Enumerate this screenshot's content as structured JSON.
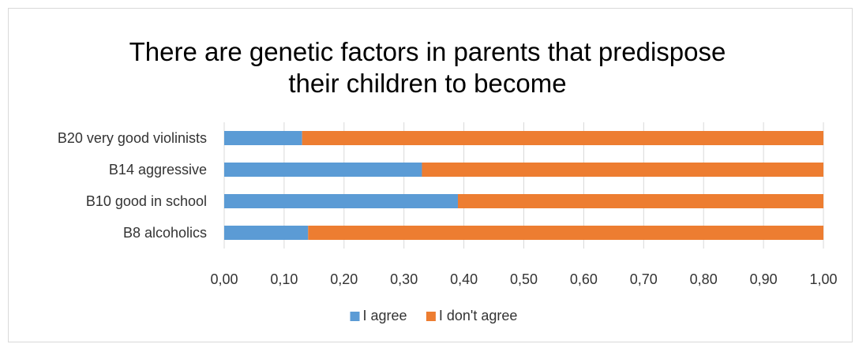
{
  "chart_data": {
    "type": "bar",
    "orientation": "horizontal",
    "stacked": true,
    "title_lines": [
      "There are genetic factors in parents that predispose",
      "their children to become"
    ],
    "categories": [
      "B20  very good violinists",
      "B14  aggressive",
      "B10   good in school",
      "B8  alcoholics"
    ],
    "series": [
      {
        "name": "I agree",
        "color": "#5b9bd5",
        "values": [
          0.13,
          0.33,
          0.39,
          0.14
        ]
      },
      {
        "name": "I don't agree",
        "color": "#ed7d31",
        "values": [
          0.87,
          0.67,
          0.61,
          0.86
        ]
      }
    ],
    "xlim": [
      0,
      1
    ],
    "xticks": [
      "0,00",
      "0,10",
      "0,20",
      "0,30",
      "0,40",
      "0,50",
      "0,60",
      "0,70",
      "0,80",
      "0,90",
      "1,00"
    ],
    "grid": true,
    "legend_position": "bottom"
  }
}
